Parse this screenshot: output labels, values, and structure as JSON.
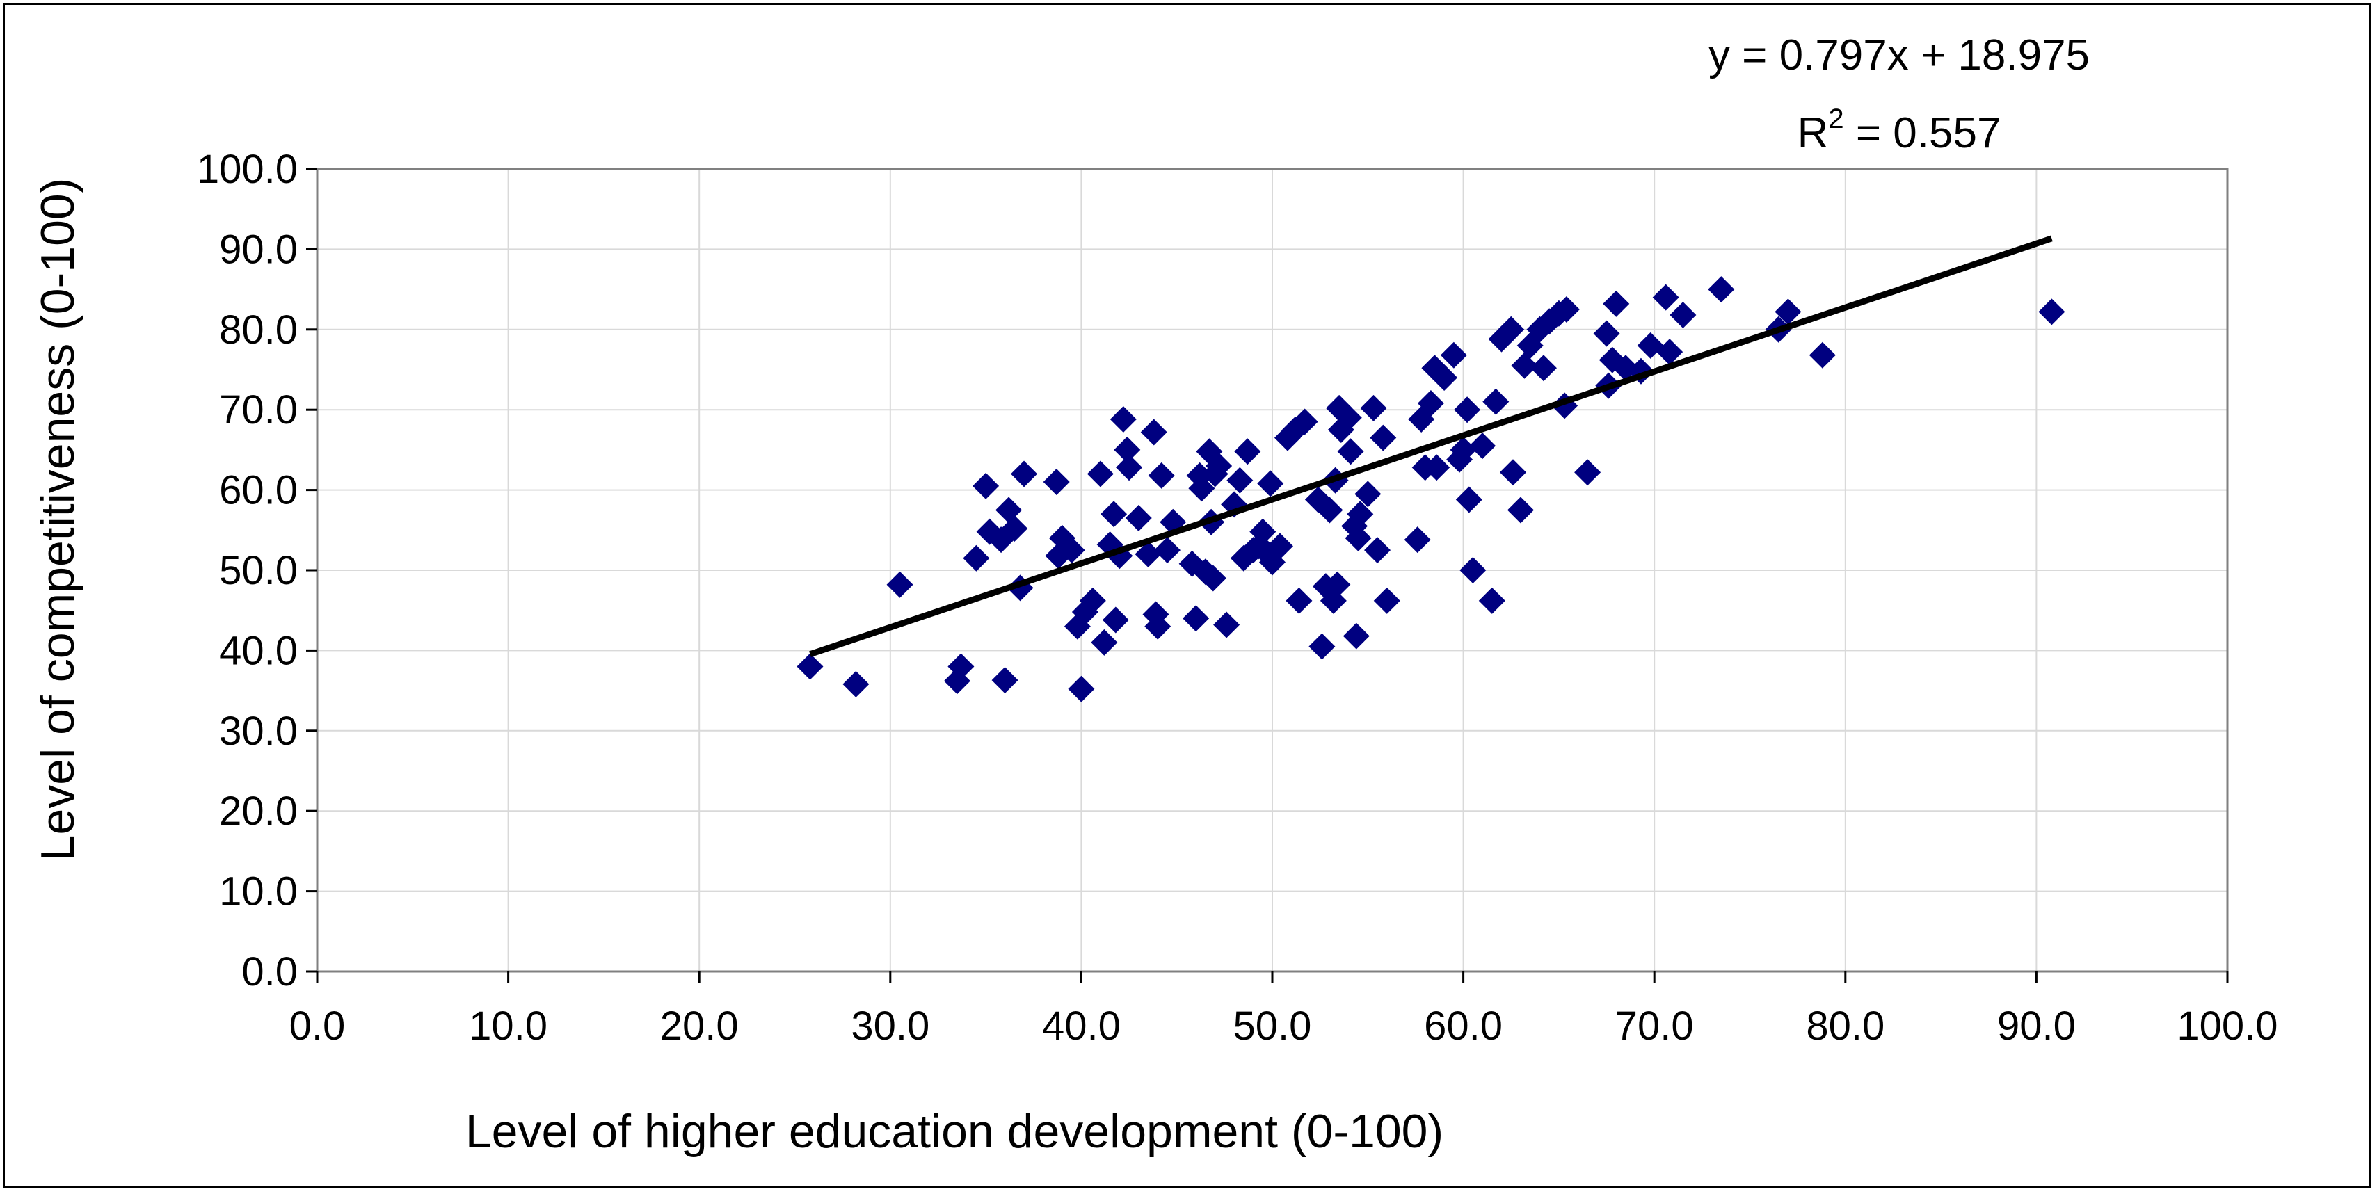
{
  "chart_data": {
    "type": "scatter",
    "title": "",
    "xlabel": "Level of higher education development (0-100)",
    "ylabel": "Level of competitiveness (0-100)",
    "xlim": [
      0,
      100
    ],
    "ylim": [
      0,
      100
    ],
    "x_ticks": [
      "0.0",
      "10.0",
      "20.0",
      "30.0",
      "40.0",
      "50.0",
      "60.0",
      "70.0",
      "80.0",
      "90.0",
      "100.0"
    ],
    "y_ticks": [
      "0.0",
      "10.0",
      "20.0",
      "30.0",
      "40.0",
      "50.0",
      "60.0",
      "70.0",
      "80.0",
      "90.0",
      "100.0"
    ],
    "grid": true,
    "marker": "diamond",
    "marker_color": "#000080",
    "trendline": {
      "type": "linear",
      "slope": 0.797,
      "intercept": 18.975,
      "x_range": [
        25.8,
        90.8
      ],
      "color": "#000000",
      "equation": "y = 0.797x + 18.975",
      "r2_prefix": "R",
      "r2_sup": "2",
      "r2_suffix": " = 0.557"
    },
    "points": [
      [
        25.8,
        38.0
      ],
      [
        28.2,
        35.8
      ],
      [
        30.5,
        48.2
      ],
      [
        33.5,
        36.2
      ],
      [
        33.7,
        38.0
      ],
      [
        34.5,
        51.5
      ],
      [
        35.0,
        60.5
      ],
      [
        35.2,
        54.8
      ],
      [
        35.8,
        53.8
      ],
      [
        36.0,
        36.3
      ],
      [
        36.2,
        57.5
      ],
      [
        36.5,
        55.2
      ],
      [
        36.8,
        47.8
      ],
      [
        37.0,
        62.0
      ],
      [
        38.7,
        61.0
      ],
      [
        38.8,
        51.8
      ],
      [
        39.0,
        54.0
      ],
      [
        39.5,
        52.5
      ],
      [
        39.8,
        43.0
      ],
      [
        40.0,
        35.2
      ],
      [
        40.2,
        44.8
      ],
      [
        40.6,
        46.2
      ],
      [
        41.0,
        62.0
      ],
      [
        41.2,
        41.0
      ],
      [
        41.5,
        53.2
      ],
      [
        41.7,
        57.0
      ],
      [
        41.8,
        43.8
      ],
      [
        42.0,
        51.8
      ],
      [
        42.2,
        68.8
      ],
      [
        42.4,
        65.0
      ],
      [
        42.5,
        62.8
      ],
      [
        43.0,
        56.5
      ],
      [
        43.5,
        52.0
      ],
      [
        43.8,
        67.2
      ],
      [
        43.9,
        44.5
      ],
      [
        44.0,
        43.0
      ],
      [
        44.2,
        61.8
      ],
      [
        44.5,
        52.5
      ],
      [
        44.8,
        56.0
      ],
      [
        45.8,
        50.8
      ],
      [
        46.0,
        44.0
      ],
      [
        46.2,
        61.8
      ],
      [
        46.3,
        60.2
      ],
      [
        46.5,
        49.8
      ],
      [
        46.7,
        64.8
      ],
      [
        46.8,
        56.0
      ],
      [
        46.9,
        49.0
      ],
      [
        47.0,
        62.0
      ],
      [
        47.2,
        63.0
      ],
      [
        47.6,
        43.2
      ],
      [
        48.0,
        58.2
      ],
      [
        48.3,
        61.2
      ],
      [
        48.5,
        51.5
      ],
      [
        48.7,
        64.8
      ],
      [
        49.0,
        52.5
      ],
      [
        49.3,
        53.0
      ],
      [
        49.5,
        54.8
      ],
      [
        49.7,
        52.2
      ],
      [
        49.9,
        60.8
      ],
      [
        50.0,
        51.0
      ],
      [
        50.4,
        53.0
      ],
      [
        50.8,
        66.5
      ],
      [
        51.2,
        67.5
      ],
      [
        51.4,
        46.2
      ],
      [
        51.7,
        68.5
      ],
      [
        52.4,
        58.8
      ],
      [
        52.6,
        40.5
      ],
      [
        52.8,
        48.0
      ],
      [
        53.0,
        57.5
      ],
      [
        53.2,
        46.2
      ],
      [
        53.3,
        61.2
      ],
      [
        53.4,
        48.2
      ],
      [
        53.5,
        70.2
      ],
      [
        53.6,
        67.5
      ],
      [
        54.0,
        69.0
      ],
      [
        54.1,
        64.8
      ],
      [
        54.3,
        55.5
      ],
      [
        54.4,
        41.8
      ],
      [
        54.5,
        54.0
      ],
      [
        54.6,
        57.0
      ],
      [
        55.0,
        59.5
      ],
      [
        55.3,
        70.2
      ],
      [
        55.5,
        52.5
      ],
      [
        55.8,
        66.5
      ],
      [
        56.0,
        46.2
      ],
      [
        57.6,
        53.8
      ],
      [
        57.8,
        68.8
      ],
      [
        58.0,
        62.8
      ],
      [
        58.3,
        70.8
      ],
      [
        58.5,
        75.2
      ],
      [
        58.6,
        62.8
      ],
      [
        59.0,
        74.0
      ],
      [
        59.5,
        76.8
      ],
      [
        59.8,
        63.8
      ],
      [
        60.0,
        65.0
      ],
      [
        60.2,
        70.0
      ],
      [
        60.3,
        58.8
      ],
      [
        60.5,
        50.0
      ],
      [
        61.0,
        65.5
      ],
      [
        61.5,
        46.2
      ],
      [
        61.7,
        71.0
      ],
      [
        62.0,
        78.8
      ],
      [
        62.5,
        80.0
      ],
      [
        62.6,
        62.2
      ],
      [
        63.0,
        57.5
      ],
      [
        63.2,
        75.5
      ],
      [
        63.5,
        78.0
      ],
      [
        64.0,
        80.0
      ],
      [
        64.2,
        75.2
      ],
      [
        64.5,
        81.0
      ],
      [
        65.0,
        82.0
      ],
      [
        65.3,
        70.5
      ],
      [
        65.4,
        82.5
      ],
      [
        66.5,
        62.2
      ],
      [
        67.5,
        79.5
      ],
      [
        67.6,
        73.0
      ],
      [
        67.8,
        76.2
      ],
      [
        68.0,
        83.2
      ],
      [
        68.5,
        75.2
      ],
      [
        69.3,
        74.8
      ],
      [
        69.8,
        78.0
      ],
      [
        70.6,
        84.0
      ],
      [
        70.8,
        77.2
      ],
      [
        71.5,
        81.8
      ],
      [
        73.5,
        85.0
      ],
      [
        76.5,
        80.0
      ],
      [
        77.0,
        82.2
      ],
      [
        78.8,
        76.8
      ],
      [
        90.8,
        82.2
      ]
    ]
  },
  "colors": {
    "plot_border": "#808080",
    "grid": "#d9d9d9"
  }
}
